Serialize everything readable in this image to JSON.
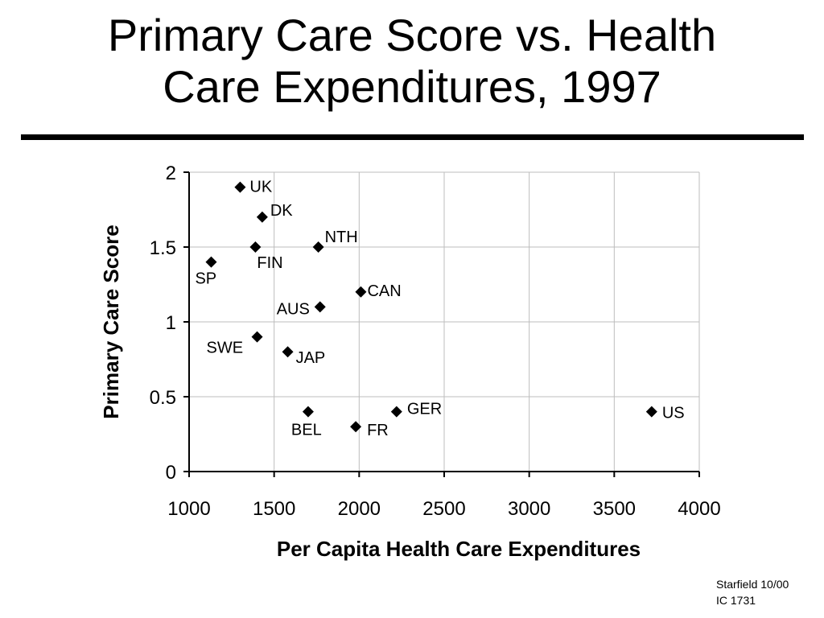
{
  "slide": {
    "title_lines": [
      "Primary Care Score vs. Health",
      "Care Expenditures, 1997"
    ],
    "footer": [
      "Starfield 10/00",
      "IC 1731"
    ]
  },
  "chart_data": {
    "type": "scatter",
    "title": "",
    "xlabel": "Per Capita Health Care Expenditures",
    "ylabel": "Primary Care Score",
    "xlim": [
      1000,
      4000
    ],
    "ylim": [
      0,
      2
    ],
    "xticks": [
      1000,
      1500,
      2000,
      2500,
      3000,
      3500,
      4000
    ],
    "yticks": [
      0,
      0.5,
      1,
      1.5,
      2
    ],
    "ytick_labels": [
      "0",
      "0.5",
      "1",
      "1.5",
      "2"
    ],
    "grid": true,
    "marker": "diamond",
    "marker_color": "#000000",
    "points": [
      {
        "label": "UK",
        "x": 1300,
        "y": 1.9
      },
      {
        "label": "DK",
        "x": 1430,
        "y": 1.7
      },
      {
        "label": "NTH",
        "x": 1760,
        "y": 1.5
      },
      {
        "label": "FIN",
        "x": 1390,
        "y": 1.5
      },
      {
        "label": "SP",
        "x": 1130,
        "y": 1.4
      },
      {
        "label": "CAN",
        "x": 2010,
        "y": 1.2
      },
      {
        "label": "AUS",
        "x": 1770,
        "y": 1.1
      },
      {
        "label": "SWE",
        "x": 1400,
        "y": 0.9
      },
      {
        "label": "JAP",
        "x": 1580,
        "y": 0.8
      },
      {
        "label": "GER",
        "x": 2220,
        "y": 0.4
      },
      {
        "label": "BEL",
        "x": 1700,
        "y": 0.4
      },
      {
        "label": "FR",
        "x": 1980,
        "y": 0.3
      },
      {
        "label": "US",
        "x": 3720,
        "y": 0.4
      }
    ]
  }
}
